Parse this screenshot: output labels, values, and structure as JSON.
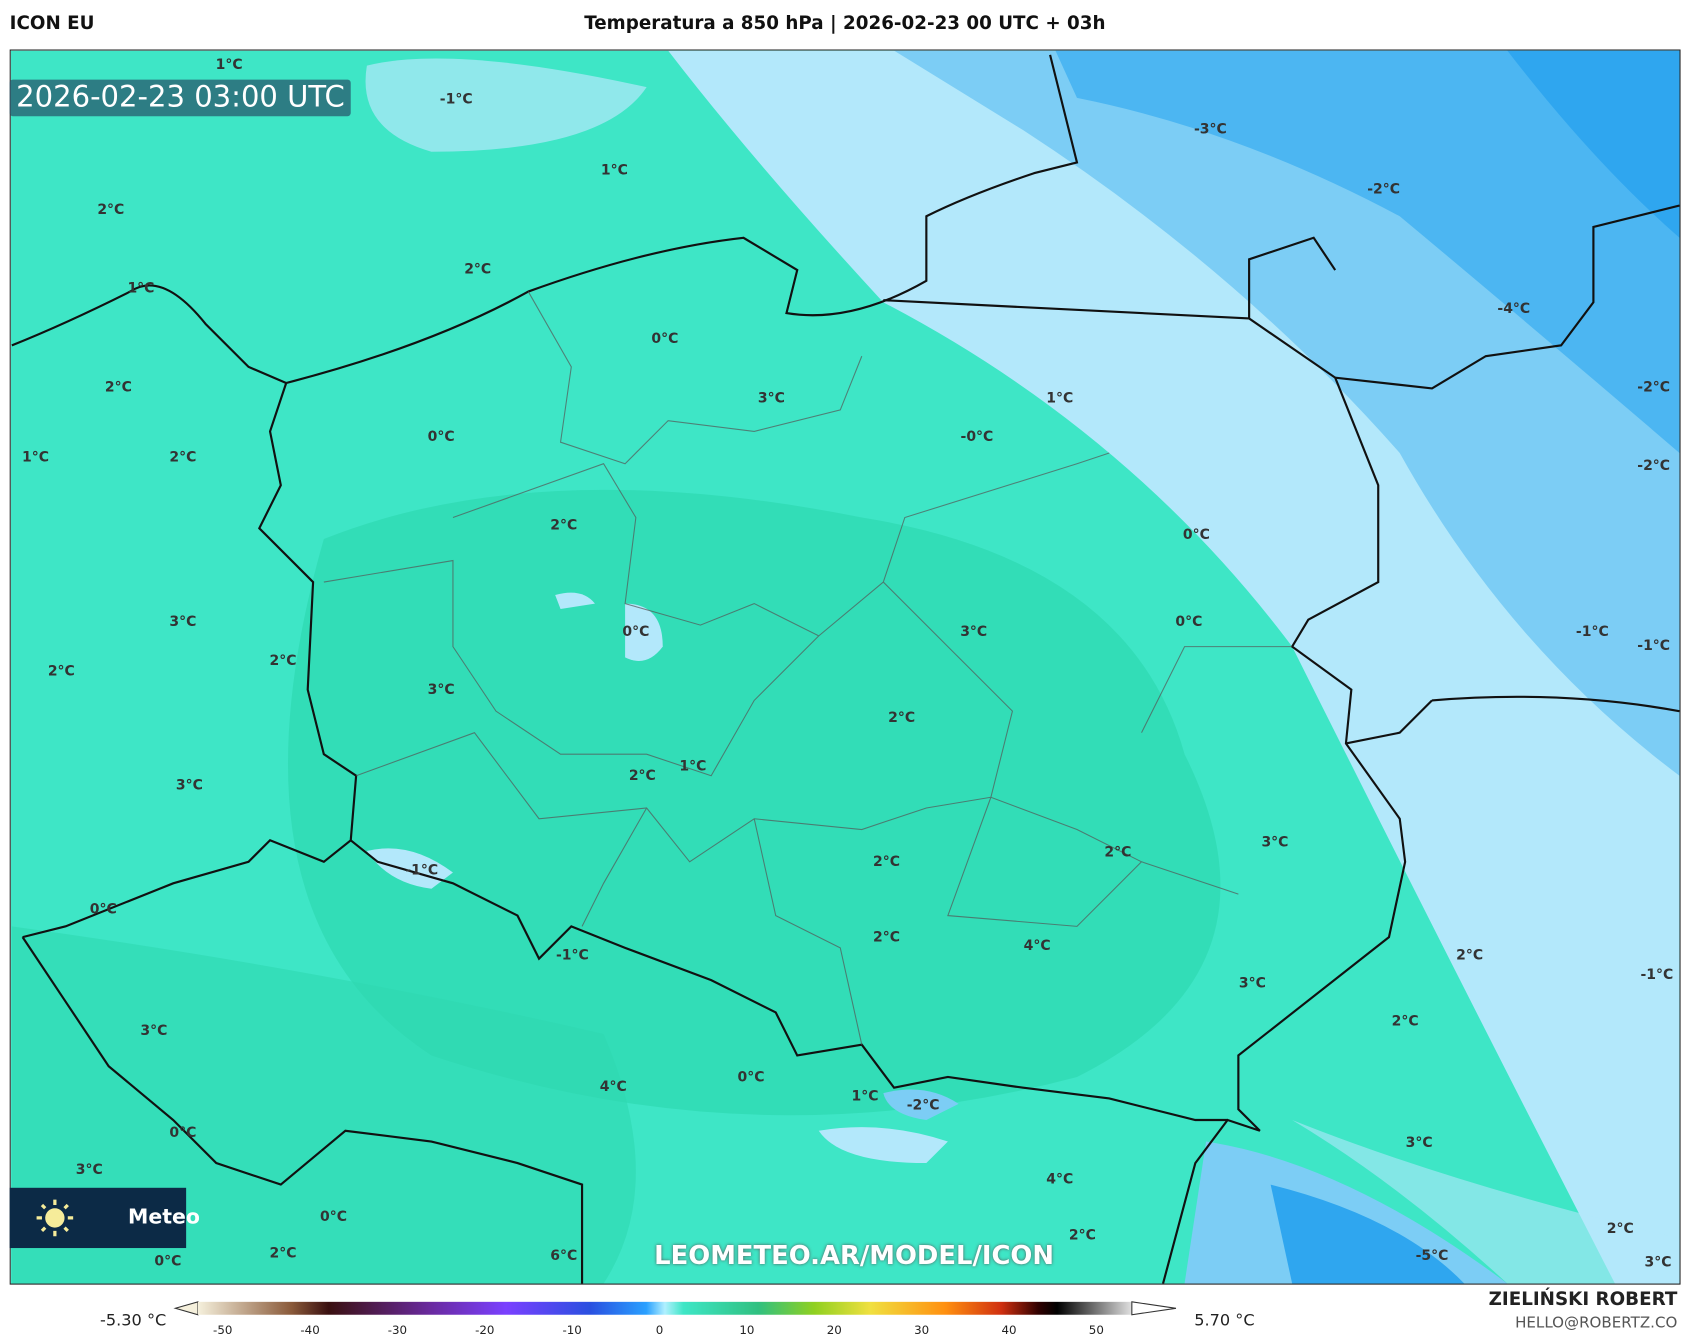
{
  "header": {
    "model": "ICON EU",
    "title": "Temperatura a 850 hPa | 2026-02-23 00 UTC + 03h"
  },
  "map": {
    "valid_time": "2026-02-23 03:00 UTC",
    "watermark": "LEOMETEO.AR/MODEL/ICON",
    "logo_text": "Meteo",
    "labels": [
      "1°C",
      "-1°C",
      "1°C",
      "2°C",
      "2°C",
      "1°C",
      "0°C",
      "2°C",
      "3°C",
      "1°C",
      "0°C",
      "-0°C",
      "1°C",
      "2°C",
      "2°C",
      "0°C",
      "3°C",
      "0°C",
      "3°C",
      "0°C",
      "-1°C",
      "-1°C",
      "2°C",
      "2°C",
      "3°C",
      "2°C",
      "1°C",
      "2°C",
      "3°C",
      "3°C",
      "2°C",
      "2°C",
      "-1°C",
      "0°C",
      "2°C",
      "4°C",
      "-1°C",
      "2°C",
      "-1°C",
      "3°C",
      "2°C",
      "3°C",
      "0°C",
      "4°C",
      "1°C",
      "-2°C",
      "0°C",
      "3°C",
      "3°C",
      "4°C",
      "0°C",
      "2°C",
      "0°C",
      "2°C",
      "6°C",
      "-5°C",
      "2°C",
      "3°C",
      "-3°C",
      "-2°C",
      "-4°C",
      "-2°C",
      "-2°C"
    ],
    "colors": {
      "warm": "#3ee6c6",
      "mid": "#2ed9b0",
      "cold_light": "#b3e8fb",
      "cold": "#7ccdf5",
      "cold_deep": "#2fa6ef"
    }
  },
  "colorbar": {
    "min_label": "-5.30 °C",
    "max_label": "5.70 °C",
    "ticks": [
      "-50",
      "-40",
      "-30",
      "-20",
      "-10",
      "0",
      "10",
      "20",
      "30",
      "40",
      "50"
    ]
  },
  "footer": {
    "author": "ZIELIŃSKI ROBERT",
    "email": "HELLO@ROBERTZ.CO"
  }
}
